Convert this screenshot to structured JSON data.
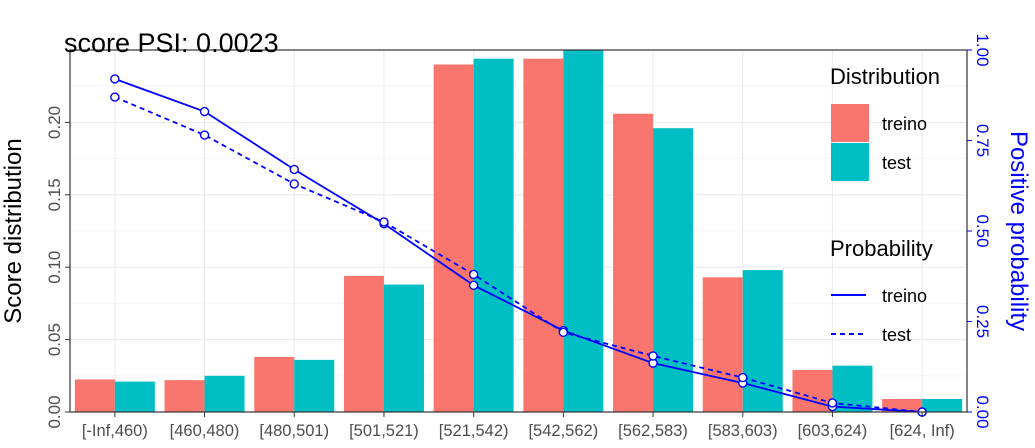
{
  "chart_data": {
    "type": "bar",
    "title": "score PSI: 0.0023",
    "ylabel": "Score distribution",
    "y2label": "Positive probability",
    "ylim": [
      0,
      0.25
    ],
    "y2lim": [
      0,
      1
    ],
    "yticks": [
      "0.00",
      "0.05",
      "0.10",
      "0.15",
      "0.20"
    ],
    "y2ticks": [
      "0.00",
      "0.25",
      "0.50",
      "0.75",
      "1.00"
    ],
    "categories": [
      "[-Inf,460)",
      "[460,480)",
      "[480,501)",
      "[501,521)",
      "[521,542)",
      "[542,562)",
      "[562,583)",
      "[583,603)",
      "[603,624)",
      "[624, Inf)"
    ],
    "series": [
      {
        "name": "treino",
        "kind": "bar",
        "color": "#F8766D",
        "values": [
          0.0225,
          0.022,
          0.038,
          0.094,
          0.24,
          0.244,
          0.206,
          0.093,
          0.029,
          0.009
        ]
      },
      {
        "name": "test",
        "kind": "bar",
        "color": "#00BFC4",
        "values": [
          0.021,
          0.025,
          0.036,
          0.088,
          0.244,
          0.25,
          0.196,
          0.098,
          0.032,
          0.009
        ]
      }
    ],
    "lines": [
      {
        "name": "treino",
        "kind": "line",
        "axis": "right",
        "style": "solid",
        "color": "#0000FF",
        "values": [
          0.92,
          0.83,
          0.67,
          0.52,
          0.35,
          0.225,
          0.135,
          0.08,
          0.015,
          0.0
        ]
      },
      {
        "name": "test",
        "kind": "line",
        "axis": "right",
        "style": "dashed",
        "color": "#0000FF",
        "values": [
          0.87,
          0.765,
          0.63,
          0.525,
          0.38,
          0.22,
          0.155,
          0.095,
          0.025,
          0.0
        ]
      }
    ],
    "legend": {
      "position": "right",
      "distribution_title": "Distribution",
      "distribution_items": [
        "treino",
        "test"
      ],
      "probability_title": "Probability",
      "probability_items": [
        "treino",
        "test"
      ]
    },
    "grid": true
  }
}
